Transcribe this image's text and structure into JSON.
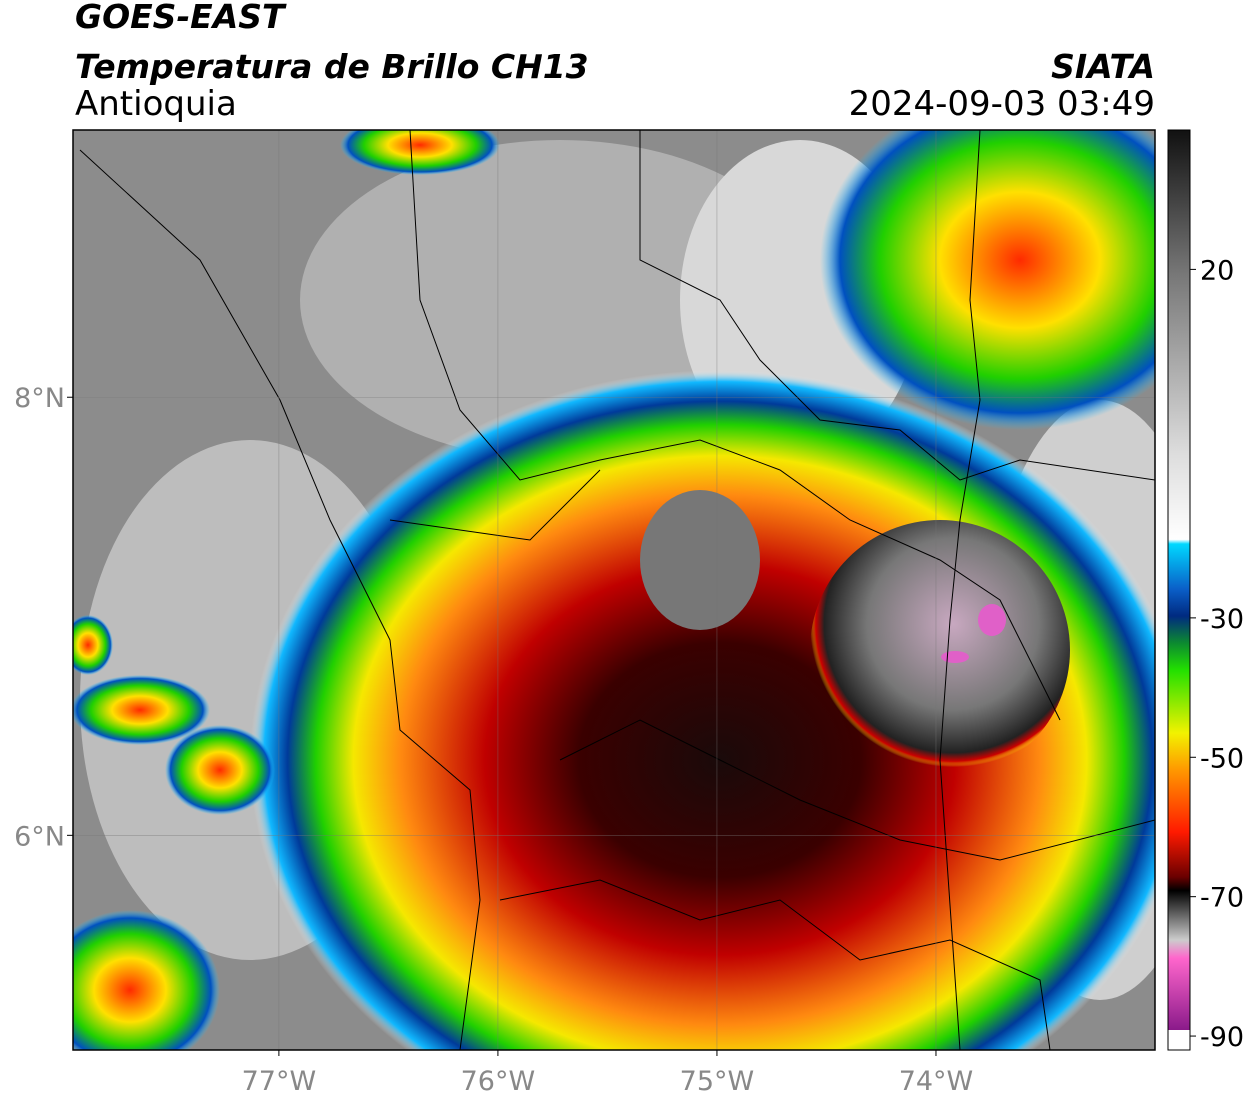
{
  "header": {
    "satellite": "GOES-EAST",
    "product": "Temperatura de Brillo CH13",
    "region": "Antioquia",
    "source": "SIATA",
    "datetime": "2024-09-03 03:49"
  },
  "map": {
    "xlim": [
      -77.94,
      -73.0
    ],
    "ylim": [
      5.02,
      9.22
    ],
    "xticks": [
      {
        "value": -77,
        "label": "77°W"
      },
      {
        "value": -76,
        "label": "76°W"
      },
      {
        "value": -75,
        "label": "75°W"
      },
      {
        "value": -74,
        "label": "74°W"
      }
    ],
    "yticks": [
      {
        "value": 8,
        "label": "8°N"
      },
      {
        "value": 6,
        "label": "6°N"
      }
    ],
    "grid": true
  },
  "colorbar": {
    "lim": [
      -92,
      40
    ],
    "ticks": [
      20,
      -30,
      -50,
      -70,
      -90
    ]
  }
}
